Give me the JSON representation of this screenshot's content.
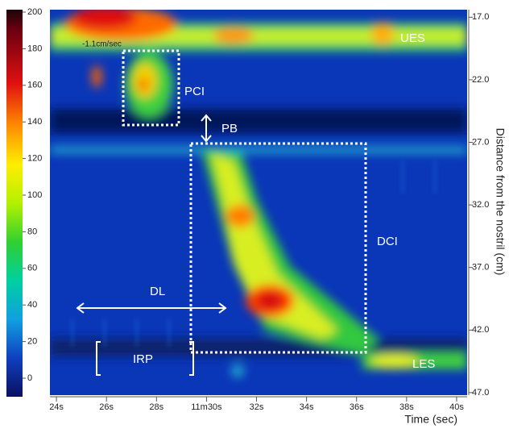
{
  "chart_data": {
    "type": "heatmap",
    "xlabel": "Time (sec)",
    "ylabel": "Distance from the nostril (cm)",
    "xlim": [
      23.74,
      40.42
    ],
    "xticks": [
      {
        "value": 24,
        "label": "24s"
      },
      {
        "value": 26,
        "label": "26s"
      },
      {
        "value": 28,
        "label": "28s"
      },
      {
        "value": 30,
        "label": "11m30s"
      },
      {
        "value": 32,
        "label": "32s"
      },
      {
        "value": 34,
        "label": "34s"
      },
      {
        "value": 36,
        "label": "36s"
      },
      {
        "value": 38,
        "label": "38s"
      },
      {
        "value": 40,
        "label": "40s"
      }
    ],
    "ylim": [
      47.2,
      16.4
    ],
    "y_inverted": true,
    "yticks": [
      {
        "value": 17,
        "label": "17.0"
      },
      {
        "value": 22,
        "label": "22.0"
      },
      {
        "value": 27,
        "label": "27.0"
      },
      {
        "value": 32,
        "label": "32.0"
      },
      {
        "value": 37,
        "label": "37.0"
      },
      {
        "value": 42,
        "label": "42.0"
      },
      {
        "value": 47,
        "label": "47.0"
      }
    ],
    "colorbar": {
      "lim": [
        0,
        200
      ],
      "ticks": [
        0,
        20,
        40,
        60,
        80,
        100,
        120,
        140,
        160,
        180,
        200
      ]
    },
    "annotations": {
      "velocity": "-1.1cm/sec",
      "ues": "UES",
      "pci": "PCI",
      "pb": "PB",
      "dci": "DCI",
      "dl": "DL",
      "irp": "IRP",
      "les": "LES"
    }
  }
}
